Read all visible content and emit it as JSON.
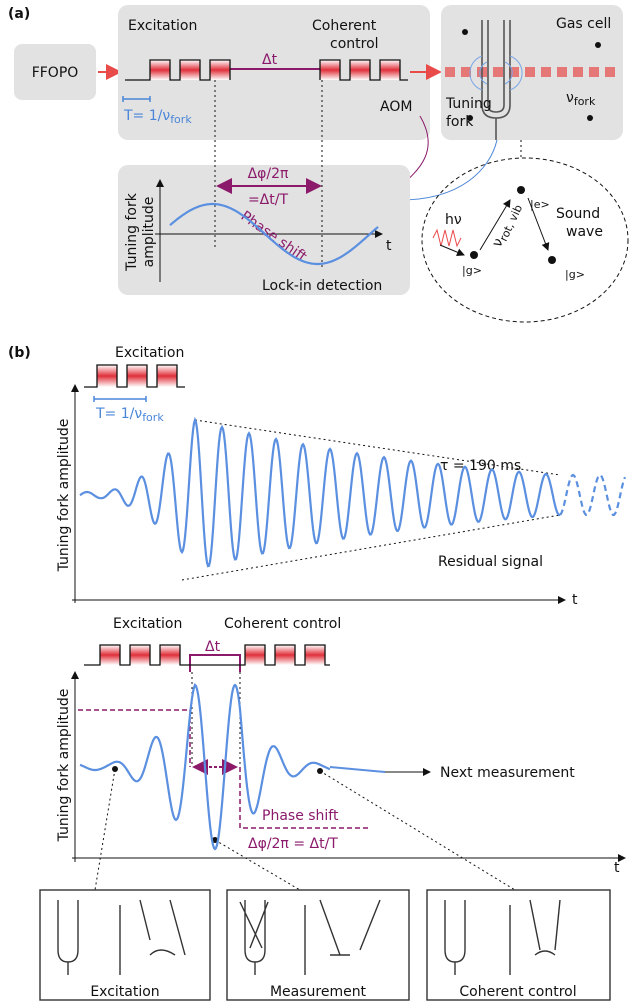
{
  "panel_a": {
    "label": "(a)",
    "source": "FFOPO",
    "excitation": "Excitation",
    "coherent_control": [
      "Coherent",
      "control"
    ],
    "delay": "Δt",
    "period": {
      "text": "T= 1/ν",
      "sub": "fork"
    },
    "aom": "AOM",
    "gas_cell": "Gas cell",
    "tuning_fork": [
      "Tuning",
      "fork"
    ],
    "fork_freq": {
      "text": "ν",
      "sub": "fork"
    },
    "phase_ratio": "Δφ/2π",
    "phase_eq": "=Δt/T",
    "amplitude_axis": [
      "Tuning fork",
      "amplitude"
    ],
    "phase_shift": "Phase shift",
    "time_axis": "t",
    "lockin": "Lock-in detection",
    "inset": {
      "photon": "hν",
      "excited": "|e>",
      "ground_left": "|g>",
      "ground_right": "|g>",
      "transition": {
        "text": "ν",
        "sub": "rot, vib"
      },
      "sound": [
        "Sound",
        "wave"
      ]
    }
  },
  "panel_b": {
    "label": "(b)",
    "top": {
      "excitation": "Excitation",
      "period": {
        "text": "T= 1/ν",
        "sub": "fork"
      },
      "amplitude_axis": "Tuning fork amplitude",
      "decay": "τ = 190 ms",
      "residual": "Residual signal",
      "time_axis": "t"
    },
    "bottom": {
      "excitation": "Excitation",
      "coherent_control": "Coherent control",
      "delay": "Δt",
      "amplitude_axis": "Tuning fork amplitude",
      "next": "Next measurement",
      "phase_shift": "Phase shift",
      "phase_eq": "Δφ/2π = Δt/T",
      "time_axis": "t"
    },
    "panels": [
      "Excitation",
      "Measurement",
      "Coherent control"
    ]
  }
}
